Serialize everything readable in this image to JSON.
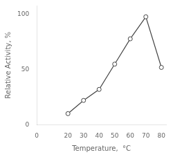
{
  "chart_data": {
    "type": "line",
    "xlabel": "Temperature,  °C",
    "ylabel": "Relative Activity, %",
    "x": [
      20,
      30,
      40,
      50,
      60,
      70,
      80
    ],
    "values": [
      10,
      22,
      32,
      55,
      78,
      98,
      52
    ],
    "color": "#444444",
    "marker": "circle",
    "xlim": [
      0,
      83
    ],
    "ylim": [
      0,
      108
    ],
    "xticks": [
      0,
      20,
      30,
      40,
      50,
      60,
      70,
      80
    ],
    "yticks": [
      0,
      50,
      100
    ],
    "grid": false
  }
}
